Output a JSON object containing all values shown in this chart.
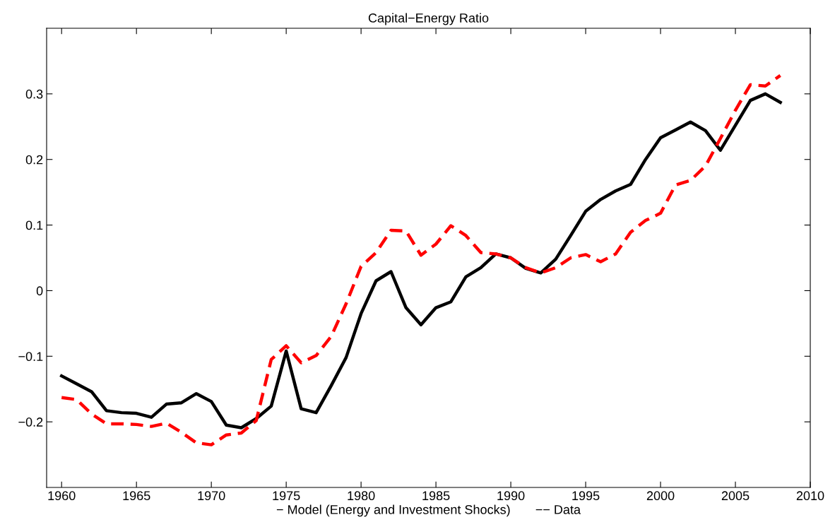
{
  "chart_data": {
    "type": "line",
    "title": "Capital−Energy Ratio",
    "xlabel": "− Model (Energy and Investment Shocks)       −− Data",
    "x": [
      1960,
      1961,
      1962,
      1963,
      1964,
      1965,
      1966,
      1967,
      1968,
      1969,
      1970,
      1971,
      1972,
      1973,
      1974,
      1975,
      1976,
      1977,
      1978,
      1979,
      1980,
      1981,
      1982,
      1983,
      1984,
      1985,
      1986,
      1987,
      1988,
      1989,
      1990,
      1991,
      1992,
      1993,
      1994,
      1995,
      1996,
      1997,
      1998,
      1999,
      2000,
      2001,
      2002,
      2003,
      2004,
      2005,
      2006,
      2007,
      2008
    ],
    "series": [
      {
        "color": "#000000",
        "line_style": "solid",
        "values": [
          -0.13,
          -0.142,
          -0.154,
          -0.183,
          -0.186,
          -0.187,
          -0.193,
          -0.173,
          -0.171,
          -0.157,
          -0.169,
          -0.205,
          -0.209,
          -0.195,
          -0.176,
          -0.092,
          -0.18,
          -0.186,
          -0.145,
          -0.102,
          -0.035,
          0.015,
          0.029,
          -0.026,
          -0.052,
          -0.026,
          -0.017,
          0.021,
          0.035,
          0.056,
          0.05,
          0.034,
          0.027,
          0.048,
          0.084,
          0.121,
          0.139,
          0.152,
          0.162,
          0.2,
          0.233,
          0.245,
          0.257,
          0.244,
          0.214,
          0.252,
          0.29,
          0.3,
          0.287
        ]
      },
      {
        "color": "#ff0000",
        "line_style": "dashed",
        "values": [
          -0.163,
          -0.166,
          -0.188,
          -0.203,
          -0.203,
          -0.204,
          -0.207,
          -0.202,
          -0.216,
          -0.232,
          -0.235,
          -0.22,
          -0.217,
          -0.198,
          -0.105,
          -0.084,
          -0.11,
          -0.099,
          -0.07,
          -0.02,
          0.037,
          0.058,
          0.092,
          0.091,
          0.054,
          0.071,
          0.099,
          0.084,
          0.058,
          0.056,
          0.05,
          0.035,
          0.027,
          0.035,
          0.05,
          0.055,
          0.044,
          0.056,
          0.089,
          0.107,
          0.118,
          0.161,
          0.168,
          0.19,
          0.232,
          0.275,
          0.314,
          0.312,
          0.328
        ]
      }
    ],
    "xlim": [
      1959,
      2010
    ],
    "xticks": [
      1960,
      1965,
      1970,
      1975,
      1980,
      1985,
      1990,
      1995,
      2000,
      2005,
      2010
    ],
    "ylim": [
      -0.3,
      0.4
    ],
    "yticks": [
      -0.2,
      -0.1,
      0,
      0.1,
      0.2,
      0.3
    ],
    "grid": false,
    "legend": false
  }
}
